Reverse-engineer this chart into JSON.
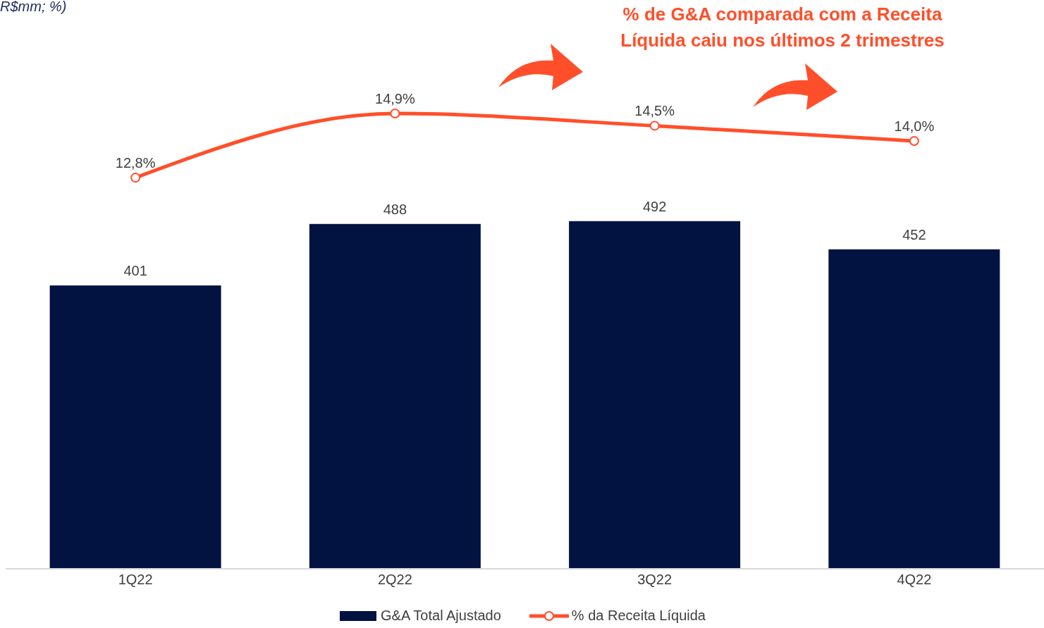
{
  "chart_data": {
    "type": "bar",
    "subtitle": "R$mm; %)",
    "annotations": [
      "% de G&A comparada com a Receita Líquida caiu nos últimos 2 trimestres"
    ],
    "categories": [
      "1Q22",
      "2Q22",
      "3Q22",
      "4Q22"
    ],
    "series": [
      {
        "name": "G&A Total Ajustado",
        "color": "#021241",
        "values": [
          401,
          488,
          492,
          452
        ],
        "value_labels": [
          "401",
          "488",
          "492",
          "452"
        ]
      },
      {
        "name": "% da Receita Líquida",
        "type": "line",
        "axis": "y2",
        "color": "#ff4f2a",
        "values": [
          12.8,
          14.9,
          14.5,
          14.0
        ],
        "value_labels": [
          "12,8%",
          "14,9%",
          "14,5%",
          "14,0%"
        ],
        "marker": "circle"
      }
    ],
    "ylim": [
      0,
      800
    ],
    "y2lim": [
      0,
      18.5
    ],
    "tick_labels": "x",
    "grid": false,
    "legend": "bottom"
  }
}
